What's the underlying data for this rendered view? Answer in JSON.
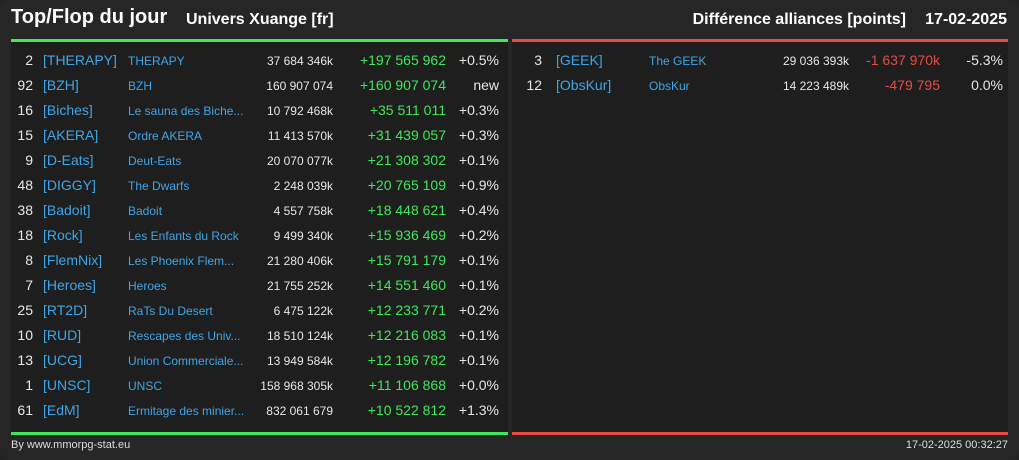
{
  "header": {
    "title": "Top/Flop du jour",
    "subtitle": "Univers Xuange [fr]",
    "right_title": "Différence alliances [points]",
    "date": "17-02-2025"
  },
  "colors": {
    "gain": "#3ee85a",
    "loss": "#e84a45",
    "link": "#3fa6e8",
    "background": "#262626"
  },
  "top": [
    {
      "rank": "2",
      "tag": "[THERAPY]",
      "name": "THERAPY",
      "points": "37 684 346k",
      "diff": "+197 565 962",
      "pct": "+0.5%"
    },
    {
      "rank": "92",
      "tag": "[BZH]",
      "name": "BZH",
      "points": "160 907 074",
      "diff": "+160 907 074",
      "pct": "new"
    },
    {
      "rank": "16",
      "tag": "[Biches]",
      "name": "Le sauna des Biche...",
      "points": "10 792 468k",
      "diff": "+35 511 011",
      "pct": "+0.3%"
    },
    {
      "rank": "15",
      "tag": "[AKERA]",
      "name": "Ordre AKERA",
      "points": "11 413 570k",
      "diff": "+31 439 057",
      "pct": "+0.3%"
    },
    {
      "rank": "9",
      "tag": "[D-Eats]",
      "name": "Deut-Eats",
      "points": "20 070 077k",
      "diff": "+21 308 302",
      "pct": "+0.1%"
    },
    {
      "rank": "48",
      "tag": "[DIGGY]",
      "name": "The Dwarfs",
      "points": "2 248 039k",
      "diff": "+20 765 109",
      "pct": "+0.9%"
    },
    {
      "rank": "38",
      "tag": "[Badoit]",
      "name": "Badoit",
      "points": "4 557 758k",
      "diff": "+18 448 621",
      "pct": "+0.4%"
    },
    {
      "rank": "18",
      "tag": "[Rock]",
      "name": "Les Enfants du Rock",
      "points": "9 499 340k",
      "diff": "+15 936 469",
      "pct": "+0.2%"
    },
    {
      "rank": "8",
      "tag": "[FlemNix]",
      "name": "Les Phoenix Flem...",
      "points": "21 280 406k",
      "diff": "+15 791 179",
      "pct": "+0.1%"
    },
    {
      "rank": "7",
      "tag": "[Heroes]",
      "name": "Heroes",
      "points": "21 755 252k",
      "diff": "+14 551 460",
      "pct": "+0.1%"
    },
    {
      "rank": "25",
      "tag": "[RT2D]",
      "name": "RaTs Du Desert",
      "points": "6 475 122k",
      "diff": "+12 233 771",
      "pct": "+0.2%"
    },
    {
      "rank": "10",
      "tag": "[RUD]",
      "name": "Rescapes des Univ...",
      "points": "18 510 124k",
      "diff": "+12 216 083",
      "pct": "+0.1%"
    },
    {
      "rank": "13",
      "tag": "[UCG]",
      "name": "Union Commerciale...",
      "points": "13 949 584k",
      "diff": "+12 196 782",
      "pct": "+0.1%"
    },
    {
      "rank": "1",
      "tag": "[UNSC]",
      "name": "UNSC",
      "points": "158 968 305k",
      "diff": "+11 106 868",
      "pct": "+0.0%"
    },
    {
      "rank": "61",
      "tag": "[EdM]",
      "name": "Ermitage des minier...",
      "points": "832 061 679",
      "diff": "+10 522 812",
      "pct": "+1.3%"
    }
  ],
  "flop": [
    {
      "rank": "3",
      "tag": "[GEEK]",
      "name": "The GEEK",
      "points": "29 036 393k",
      "diff": "-1 637 970k",
      "pct": "-5.3%"
    },
    {
      "rank": "12",
      "tag": "[ObsKur]",
      "name": "ObsKur",
      "points": "14 223 489k",
      "diff": "-479 795",
      "pct": "0.0%"
    }
  ],
  "footer": {
    "credit": "By www.mmorpg-stat.eu",
    "timestamp": "17-02-2025 00:32:27"
  }
}
